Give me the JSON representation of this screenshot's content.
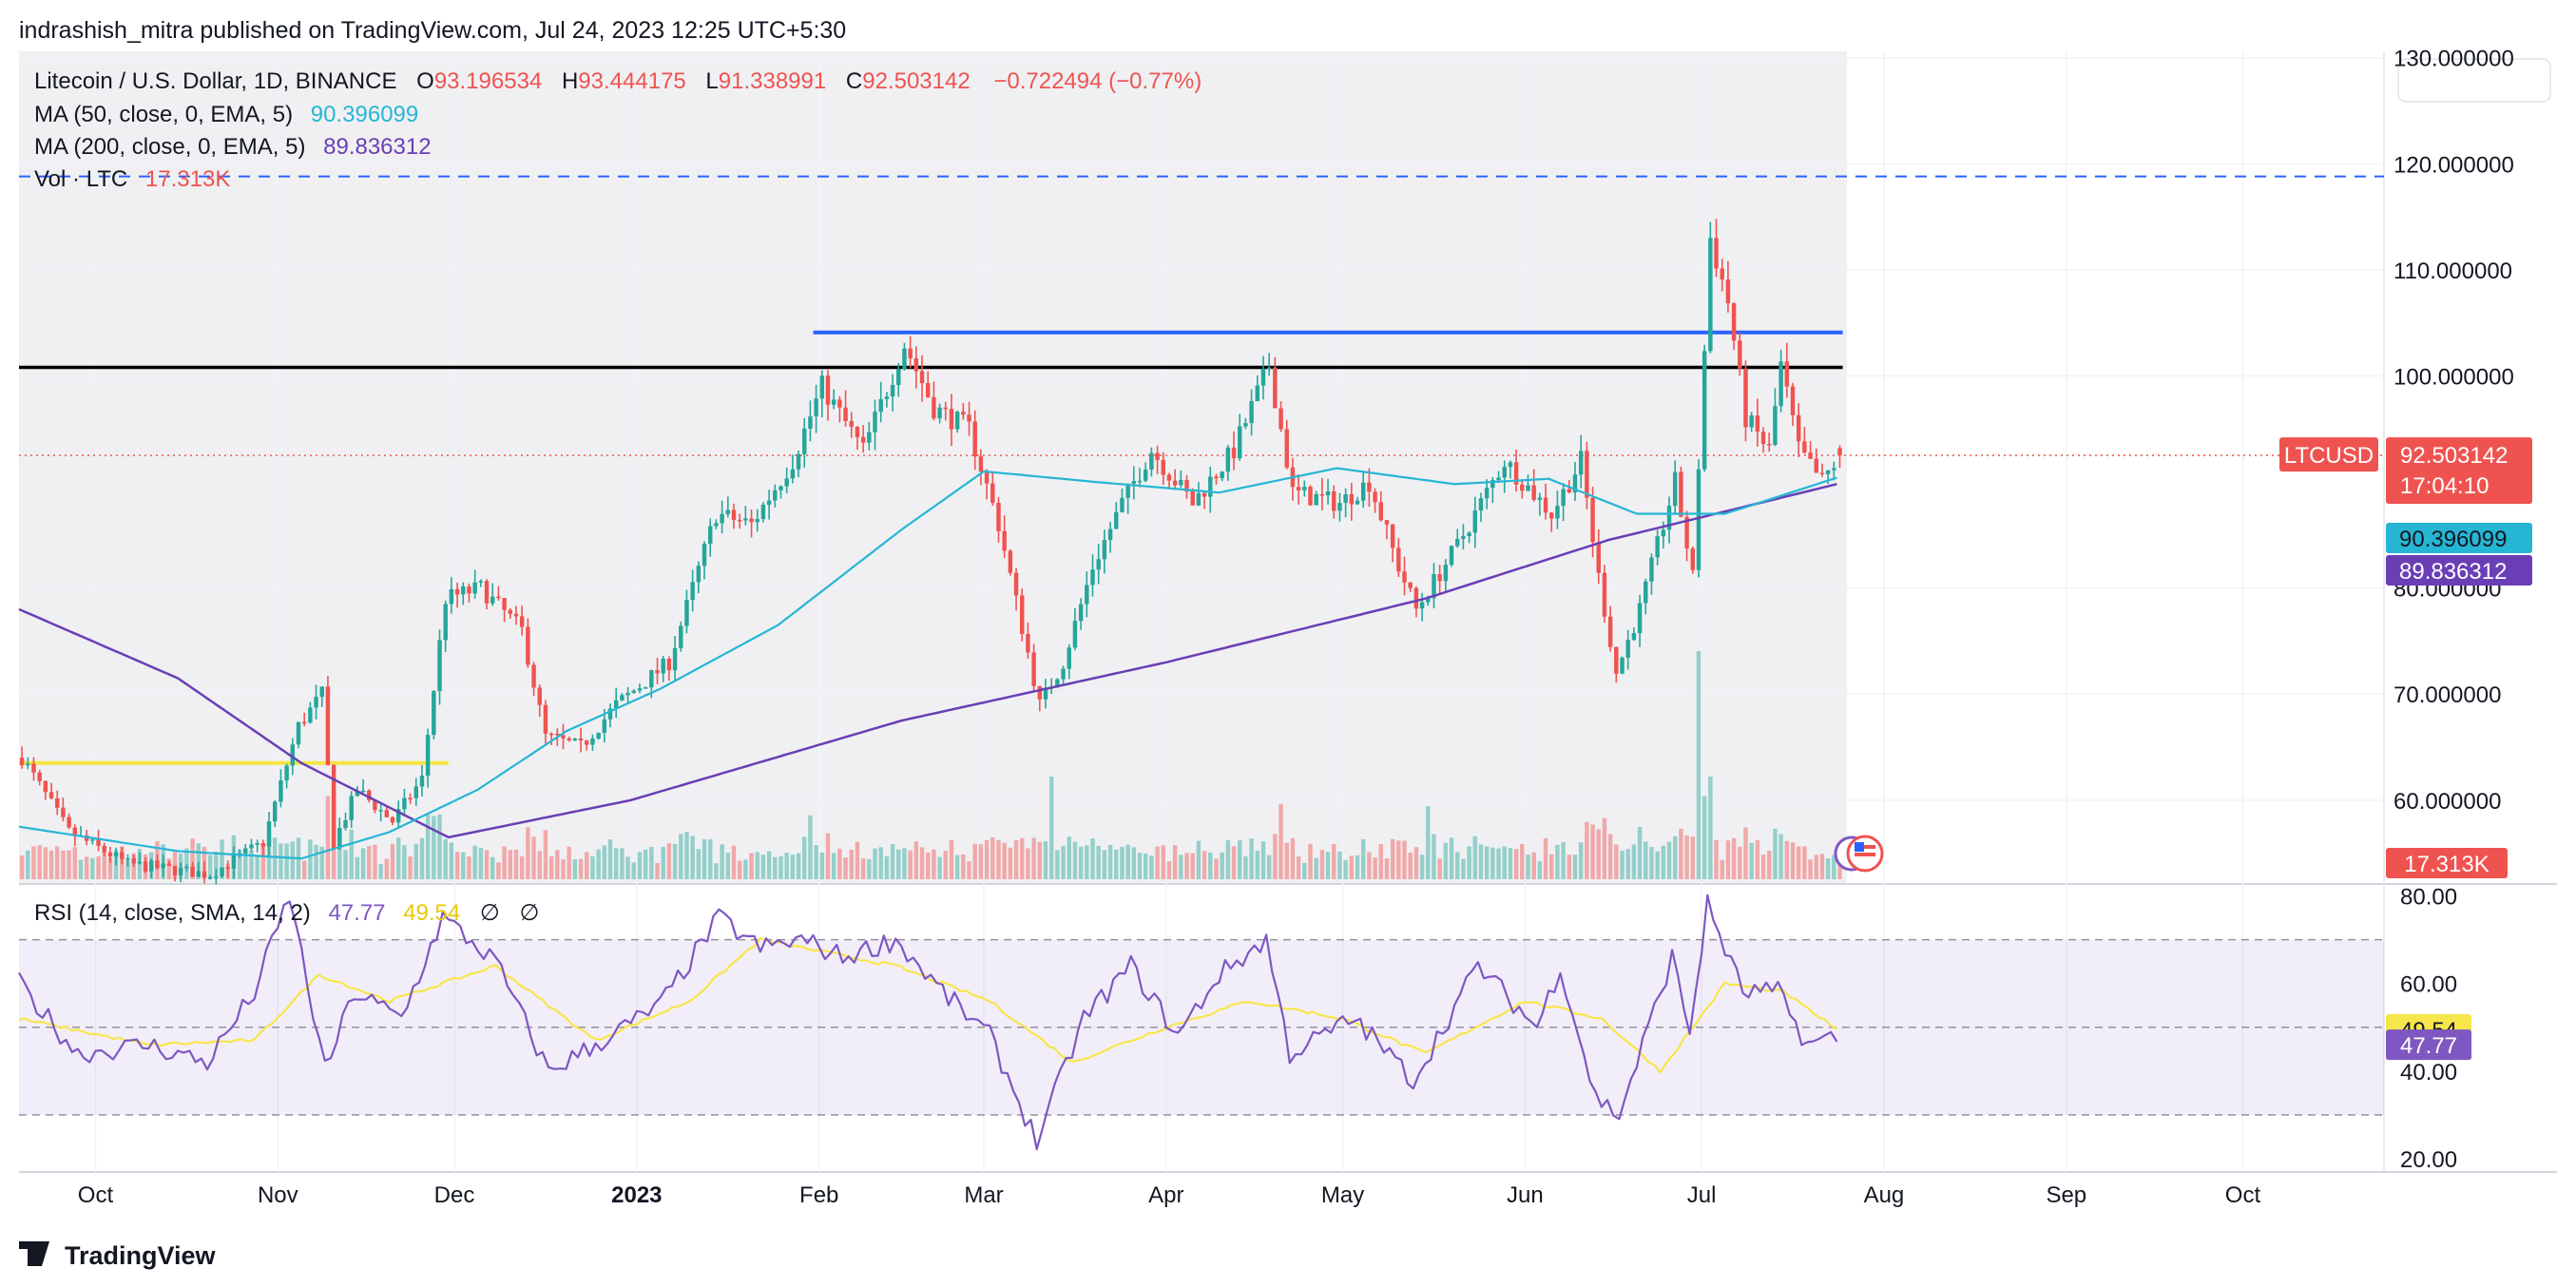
{
  "publish_line": "indrashish_mitra published on TradingView.com, Jul 24, 2023 12:25 UTC+5:30",
  "legend": {
    "symbol": "Litecoin / U.S. Dollar, 1D, BINANCE",
    "o_label": "O",
    "o_value": "93.196534",
    "h_label": "H",
    "h_value": "93.444175",
    "l_label": "L",
    "l_value": "91.338991",
    "c_label": "C",
    "c_value": "92.503142",
    "change": "−0.722494 (−0.77%)",
    "ma50_label": "MA (50, close, 0, EMA, 5)",
    "ma50_value": "90.396099",
    "ma200_label": "MA (200, close, 0, EMA, 5)",
    "ma200_value": "89.836312",
    "vol_label": "Vol · LTC",
    "vol_value": "17.313K",
    "rsi_label": "RSI (14, close, SMA, 14, 2)",
    "rsi_value": "47.77",
    "rsi_ma_value": "49.54",
    "rsi_extra1": "∅",
    "rsi_extra2": "∅"
  },
  "price_badges": {
    "ticker": "LTCUSD",
    "last": "92.503142",
    "countdown": "17:04:10",
    "ma50": "90.396099",
    "ma200": "89.836312",
    "volume": "17.313K",
    "rsi_ma": "49.54",
    "rsi": "47.77"
  },
  "brand": "TradingView",
  "colors": {
    "up": "#26a69a",
    "down": "#ef5350",
    "ma50": "#26b6d4",
    "ma200": "#6a3fb5",
    "resistance": "#2962ff",
    "support": "#000000",
    "yellow": "#f5e642",
    "rsi": "#7e57c2",
    "rsi_ma": "#f7e64b"
  },
  "chart_data": [
    {
      "type": "candlestick",
      "title": "Litecoin / U.S. Dollar, 1D, BINANCE",
      "x_ticks": [
        "Oct",
        "Nov",
        "Dec",
        "2023",
        "Feb",
        "Mar",
        "Apr",
        "May",
        "Jun",
        "Jul",
        "Aug",
        "Sep",
        "Oct"
      ],
      "x_tick_dates": [
        "2022-10-01",
        "2022-11-01",
        "2022-12-01",
        "2023-01-01",
        "2023-02-01",
        "2023-03-01",
        "2023-04-01",
        "2023-05-01",
        "2023-06-01",
        "2023-07-01",
        "2023-08-01",
        "2023-09-01",
        "2023-10-01"
      ],
      "x_range": [
        "2022-09-18",
        "2023-10-25"
      ],
      "y_ticks": [
        "60.000000",
        "70.000000",
        "80.000000",
        "100.000000",
        "110.000000",
        "120.000000",
        "130.000000"
      ],
      "y_tick_values": [
        60,
        70,
        80,
        100,
        110,
        120,
        130
      ],
      "ylim": [
        52.1,
        130.6
      ],
      "last_price": 92.503142,
      "horizontal_lines": [
        {
          "kind": "dashed",
          "value": 118.8,
          "start": "2022-09-18",
          "end": "2023-10-25"
        },
        {
          "kind": "resistance",
          "value": 104.1,
          "start": "2023-01-31",
          "end": "2023-07-25"
        },
        {
          "kind": "support",
          "value": 100.8,
          "start": "2022-09-18",
          "end": "2023-07-25"
        },
        {
          "kind": "yellow",
          "value": 63.5,
          "start": "2022-09-18",
          "end": "2022-11-30"
        }
      ],
      "anchors": [
        [
          "2022-09-18",
          64
        ],
        [
          "2022-09-26",
          57
        ],
        [
          "2022-10-06",
          54
        ],
        [
          "2022-10-20",
          53
        ],
        [
          "2022-10-29",
          56
        ],
        [
          "2022-11-04",
          67
        ],
        [
          "2022-11-08",
          70
        ],
        [
          "2022-11-10",
          56
        ],
        [
          "2022-11-14",
          61
        ],
        [
          "2022-11-20",
          58
        ],
        [
          "2022-11-25",
          62
        ],
        [
          "2022-11-29",
          79
        ],
        [
          "2022-12-05",
          80
        ],
        [
          "2022-12-12",
          76
        ],
        [
          "2022-12-16",
          66
        ],
        [
          "2022-12-22",
          65
        ],
        [
          "2022-12-28",
          69
        ],
        [
          "2023-01-06",
          73
        ],
        [
          "2023-01-14",
          87
        ],
        [
          "2023-01-20",
          86
        ],
        [
          "2023-01-27",
          92
        ],
        [
          "2023-02-01",
          99
        ],
        [
          "2023-02-08",
          93
        ],
        [
          "2023-02-15",
          103
        ],
        [
          "2023-02-20",
          97
        ],
        [
          "2023-02-26",
          95
        ],
        [
          "2023-03-03",
          86
        ],
        [
          "2023-03-10",
          69
        ],
        [
          "2023-03-14",
          73
        ],
        [
          "2023-03-19",
          82
        ],
        [
          "2023-03-24",
          88
        ],
        [
          "2023-03-29",
          93
        ],
        [
          "2023-04-05",
          88
        ],
        [
          "2023-04-12",
          93
        ],
        [
          "2023-04-18",
          101
        ],
        [
          "2023-04-22",
          89
        ],
        [
          "2023-04-30",
          88
        ],
        [
          "2023-05-05",
          90
        ],
        [
          "2023-05-10",
          82
        ],
        [
          "2023-05-13",
          78
        ],
        [
          "2023-05-20",
          84
        ],
        [
          "2023-05-28",
          92
        ],
        [
          "2023-06-05",
          87
        ],
        [
          "2023-06-10",
          92
        ],
        [
          "2023-06-13",
          81
        ],
        [
          "2023-06-16",
          72
        ],
        [
          "2023-06-20",
          78
        ],
        [
          "2023-06-26",
          90
        ],
        [
          "2023-06-29",
          81
        ],
        [
          "2023-07-02",
          113
        ],
        [
          "2023-07-05",
          107
        ],
        [
          "2023-07-08",
          96
        ],
        [
          "2023-07-12",
          93
        ],
        [
          "2023-07-14",
          101
        ],
        [
          "2023-07-17",
          93
        ],
        [
          "2023-07-21",
          90
        ],
        [
          "2023-07-24",
          92.5
        ]
      ],
      "ma50_anchors": [
        [
          "2022-09-18",
          57.5
        ],
        [
          "2022-10-15",
          55.2
        ],
        [
          "2022-11-05",
          54.5
        ],
        [
          "2022-11-20",
          57.0
        ],
        [
          "2022-12-05",
          61.0
        ],
        [
          "2022-12-20",
          66.5
        ],
        [
          "2023-01-05",
          70.5
        ],
        [
          "2023-01-25",
          76.5
        ],
        [
          "2023-02-15",
          85.5
        ],
        [
          "2023-03-01",
          91.0
        ],
        [
          "2023-03-20",
          90.0
        ],
        [
          "2023-04-10",
          89.0
        ],
        [
          "2023-04-30",
          91.3
        ],
        [
          "2023-05-20",
          89.8
        ],
        [
          "2023-06-05",
          90.3
        ],
        [
          "2023-06-20",
          87.0
        ],
        [
          "2023-07-05",
          87.0
        ],
        [
          "2023-07-24",
          90.4
        ]
      ],
      "ma200_anchors": [
        [
          "2022-09-18",
          78.0
        ],
        [
          "2022-10-15",
          71.5
        ],
        [
          "2022-11-05",
          63.5
        ],
        [
          "2022-11-30",
          56.5
        ],
        [
          "2022-12-31",
          60.0
        ],
        [
          "2023-02-15",
          67.5
        ],
        [
          "2023-04-01",
          73.0
        ],
        [
          "2023-05-15",
          79.0
        ],
        [
          "2023-06-15",
          84.5
        ],
        [
          "2023-07-24",
          89.8
        ]
      ],
      "ma50_label_value": 90.396099,
      "ma200_label_value": 89.836312
    },
    {
      "type": "bar",
      "title": "Vol · LTC",
      "last_value": "17.313K",
      "volume_spikes": [
        [
          "2023-06-30",
          1.0
        ],
        [
          "2023-07-02",
          0.45
        ],
        [
          "2023-03-12",
          0.45
        ],
        [
          "2023-01-30",
          0.28
        ],
        [
          "2023-04-20",
          0.33
        ],
        [
          "2023-05-15",
          0.32
        ]
      ]
    },
    {
      "type": "line",
      "title": "RSI (14, close, SMA, 14, 2)",
      "y_ticks": [
        "20.00",
        "40.00",
        "60.00",
        "80.00"
      ],
      "y_tick_values": [
        20,
        40,
        60,
        80
      ],
      "ylim": [
        17.0,
        82.7
      ],
      "band": [
        30,
        70
      ],
      "midline": 50,
      "series": [
        {
          "name": "RSI",
          "last": 47.77,
          "anchors": [
            [
              "2022-09-18",
              60
            ],
            [
              "2022-09-28",
              44
            ],
            [
              "2022-10-10",
              46
            ],
            [
              "2022-10-20",
              42
            ],
            [
              "2022-10-28",
              58
            ],
            [
              "2022-11-03",
              80
            ],
            [
              "2022-11-09",
              40
            ],
            [
              "2022-11-14",
              58
            ],
            [
              "2022-11-22",
              52
            ],
            [
              "2022-11-29",
              75
            ],
            [
              "2022-12-08",
              65
            ],
            [
              "2022-12-17",
              40
            ],
            [
              "2022-12-25",
              46
            ],
            [
              "2023-01-05",
              55
            ],
            [
              "2023-01-15",
              75
            ],
            [
              "2023-01-22",
              68
            ],
            [
              "2023-01-29",
              70
            ],
            [
              "2023-02-05",
              66
            ],
            [
              "2023-02-14",
              70
            ],
            [
              "2023-02-22",
              58
            ],
            [
              "2023-03-02",
              48
            ],
            [
              "2023-03-10",
              24
            ],
            [
              "2023-03-18",
              52
            ],
            [
              "2023-03-26",
              64
            ],
            [
              "2023-04-03",
              48
            ],
            [
              "2023-04-10",
              62
            ],
            [
              "2023-04-18",
              70
            ],
            [
              "2023-04-22",
              44
            ],
            [
              "2023-05-03",
              52
            ],
            [
              "2023-05-13",
              38
            ],
            [
              "2023-05-24",
              64
            ],
            [
              "2023-06-03",
              50
            ],
            [
              "2023-06-07",
              64
            ],
            [
              "2023-06-13",
              34
            ],
            [
              "2023-06-17",
              30
            ],
            [
              "2023-06-26",
              66
            ],
            [
              "2023-06-29",
              49
            ],
            [
              "2023-07-02",
              78
            ],
            [
              "2023-07-08",
              58
            ],
            [
              "2023-07-14",
              58
            ],
            [
              "2023-07-19",
              46
            ],
            [
              "2023-07-24",
              47.77
            ]
          ]
        },
        {
          "name": "RSI MA",
          "last": 49.54,
          "anchors": [
            [
              "2022-09-18",
              52
            ],
            [
              "2022-10-10",
              46
            ],
            [
              "2022-10-28",
              47
            ],
            [
              "2022-11-08",
              62
            ],
            [
              "2022-11-20",
              56
            ],
            [
              "2022-12-08",
              64
            ],
            [
              "2022-12-25",
              47
            ],
            [
              "2023-01-10",
              56
            ],
            [
              "2023-01-22",
              70
            ],
            [
              "2023-02-14",
              64
            ],
            [
              "2023-03-02",
              56
            ],
            [
              "2023-03-16",
              42
            ],
            [
              "2023-04-01",
              50
            ],
            [
              "2023-04-15",
              56
            ],
            [
              "2023-05-01",
              52
            ],
            [
              "2023-05-15",
              44
            ],
            [
              "2023-06-01",
              56
            ],
            [
              "2023-06-14",
              52
            ],
            [
              "2023-06-24",
              40
            ],
            [
              "2023-07-05",
              60
            ],
            [
              "2023-07-15",
              58
            ],
            [
              "2023-07-24",
              49.54
            ]
          ]
        }
      ]
    }
  ]
}
